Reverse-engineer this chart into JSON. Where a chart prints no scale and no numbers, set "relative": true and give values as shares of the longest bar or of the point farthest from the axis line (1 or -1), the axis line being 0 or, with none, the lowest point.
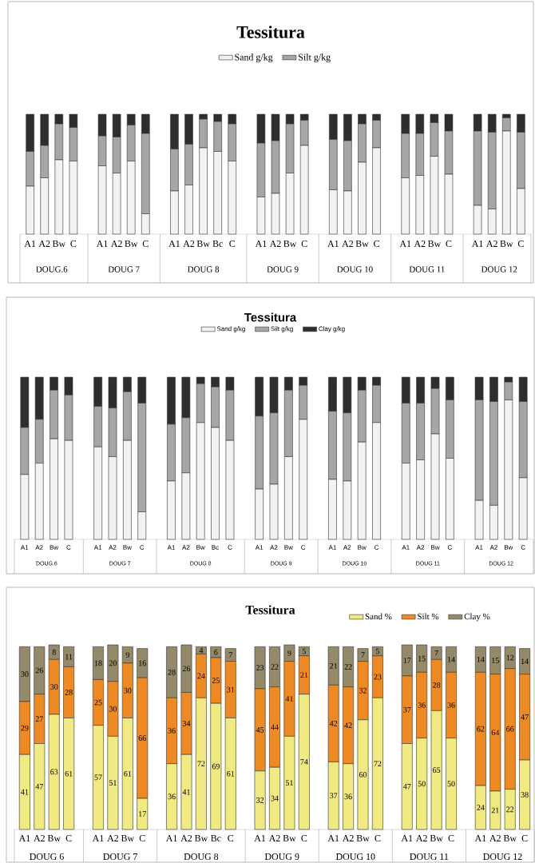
{
  "chart_data": [
    {
      "type": "bar",
      "title": "Tessitura",
      "stacked": true,
      "relative": true,
      "legend": "top",
      "categories": [
        "A1",
        "A2",
        "Bw",
        "C",
        null,
        "A1",
        "A2",
        "Bw",
        "C",
        null,
        "A1",
        "A2",
        "Bw",
        "Bc",
        "C",
        null,
        "A1",
        "A2",
        "Bw",
        "C",
        null,
        "A1",
        "A2",
        "Bw",
        "C",
        null,
        "A1",
        "A2",
        "Bw",
        "C",
        null,
        "A1",
        "A2",
        "Bw",
        "C"
      ],
      "annotations": [
        "DOUG.6",
        "DOUG 7",
        "DOUG 8",
        "DOUG 9",
        "DOUG 10",
        "DOUG 11",
        "DOUG 12"
      ],
      "series": [
        {
          "name": "Sand g/kg",
          "color": "#f2f2f2",
          "values": [
            0.4,
            0.47,
            0.62,
            0.61,
            null,
            0.57,
            0.51,
            0.61,
            0.17,
            null,
            0.36,
            0.41,
            0.72,
            0.69,
            0.61,
            null,
            0.31,
            0.34,
            0.51,
            0.74,
            null,
            0.37,
            0.36,
            0.6,
            0.72,
            null,
            0.47,
            0.49,
            0.65,
            0.5,
            null,
            0.24,
            0.21,
            0.86,
            0.38
          ]
        },
        {
          "name": "Silt g/kg",
          "color": "#a6a6a6",
          "values": [
            0.29,
            0.27,
            0.3,
            0.28,
            null,
            0.25,
            0.3,
            0.3,
            0.67,
            null,
            0.35,
            0.34,
            0.24,
            0.25,
            0.31,
            null,
            0.45,
            0.44,
            0.41,
            0.21,
            null,
            0.42,
            0.42,
            0.32,
            0.23,
            null,
            0.37,
            0.35,
            0.28,
            0.36,
            null,
            0.62,
            0.64,
            0.11,
            0.47
          ]
        },
        {
          "color": "#2e2e2e",
          "values": [
            0.31,
            0.26,
            0.08,
            0.11,
            null,
            0.18,
            0.19,
            0.09,
            0.16,
            null,
            0.29,
            0.25,
            0.04,
            0.06,
            0.08,
            null,
            0.24,
            0.22,
            0.08,
            0.05,
            null,
            0.21,
            0.22,
            0.08,
            0.05,
            null,
            0.16,
            0.16,
            0.07,
            0.14,
            null,
            0.14,
            0.15,
            0.03,
            0.15
          ]
        }
      ]
    },
    {
      "type": "bar",
      "title": "Tessitura",
      "stacked": true,
      "relative": true,
      "legend": "top",
      "categories": [
        "A1",
        "A2",
        "Bw",
        "C",
        null,
        "A1",
        "A2",
        "Bw",
        "C",
        null,
        "A1",
        "A2",
        "Bw",
        "Bc",
        "C",
        null,
        "A1",
        "A2",
        "Bw",
        "C",
        null,
        "A1",
        "A2",
        "Bw",
        "C",
        null,
        "A1",
        "A2",
        "Bw",
        "C",
        null,
        "A1",
        "A2",
        "Bw",
        "C"
      ],
      "annotations": [
        "DOUG.6",
        "DOUG 7",
        "DOUG 8",
        "DOUG 9",
        "DOUG 10",
        "DOUG 11",
        "DOUG 12"
      ],
      "series": [
        {
          "name": "Sand g/kg",
          "color": "#f2f2f2",
          "values": [
            0.4,
            0.47,
            0.62,
            0.61,
            null,
            0.57,
            0.51,
            0.61,
            0.17,
            null,
            0.36,
            0.41,
            0.72,
            0.69,
            0.61,
            null,
            0.31,
            0.34,
            0.51,
            0.74,
            null,
            0.37,
            0.36,
            0.6,
            0.72,
            null,
            0.47,
            0.49,
            0.65,
            0.5,
            null,
            0.24,
            0.21,
            0.86,
            0.38
          ]
        },
        {
          "name": "Silt g/kg",
          "color": "#a6a6a6",
          "values": [
            0.29,
            0.27,
            0.3,
            0.28,
            null,
            0.25,
            0.3,
            0.3,
            0.67,
            null,
            0.35,
            0.34,
            0.24,
            0.25,
            0.31,
            null,
            0.45,
            0.44,
            0.41,
            0.21,
            null,
            0.42,
            0.42,
            0.32,
            0.23,
            null,
            0.37,
            0.35,
            0.28,
            0.36,
            null,
            0.62,
            0.64,
            0.11,
            0.47
          ]
        },
        {
          "name": "Clay g/kg",
          "color": "#2e2e2e",
          "values": [
            0.31,
            0.26,
            0.08,
            0.11,
            null,
            0.18,
            0.19,
            0.09,
            0.16,
            null,
            0.29,
            0.25,
            0.04,
            0.06,
            0.08,
            null,
            0.24,
            0.22,
            0.08,
            0.05,
            null,
            0.21,
            0.22,
            0.08,
            0.05,
            null,
            0.16,
            0.16,
            0.07,
            0.14,
            null,
            0.14,
            0.15,
            0.03,
            0.15
          ]
        }
      ]
    },
    {
      "type": "bar",
      "title": "Tessitura",
      "stacked": true,
      "legend": "top right",
      "data_labels": true,
      "categories": [
        "A1",
        "A2",
        "Bw",
        "C",
        null,
        "A1",
        "A2",
        "Bw",
        "C",
        null,
        "A1",
        "A2",
        "Bw",
        "Bc",
        "C",
        null,
        "A1",
        "A2",
        "Bw",
        "C",
        null,
        "A1",
        "A2",
        "Bw",
        "C",
        null,
        "A1",
        "A2",
        "Bw",
        "C",
        null,
        "A1",
        "A2",
        "Bw",
        "C"
      ],
      "annotations": [
        "DOUG 6",
        "DOUG 7",
        "DOUG 8",
        "DOUG 9",
        "DOUG 10",
        "DOUG 11",
        "DOUG 12"
      ],
      "series": [
        {
          "name": "Sand %",
          "color": "#f0ea80",
          "values": [
            41,
            47,
            63,
            61,
            null,
            57,
            51,
            61,
            17,
            null,
            36,
            41,
            72,
            69,
            61,
            null,
            32,
            34,
            51,
            74,
            null,
            37,
            36,
            60,
            72,
            null,
            47,
            50,
            65,
            50,
            null,
            24,
            21,
            22,
            38
          ]
        },
        {
          "name": "Silt %",
          "color": "#ef8a22",
          "values": [
            29,
            27,
            30,
            28,
            null,
            25,
            30,
            30,
            66,
            null,
            36,
            34,
            24,
            25,
            31,
            null,
            45,
            44,
            41,
            21,
            null,
            42,
            42,
            32,
            23,
            null,
            37,
            36,
            28,
            36,
            null,
            62,
            64,
            66,
            47
          ]
        },
        {
          "name": "Clay %",
          "color": "#948a6a",
          "values": [
            30,
            26,
            8,
            11,
            null,
            18,
            20,
            9,
            16,
            null,
            28,
            26,
            4,
            6,
            7,
            null,
            23,
            22,
            9,
            5,
            null,
            21,
            22,
            7,
            5,
            null,
            17,
            15,
            7,
            14,
            null,
            14,
            15,
            12,
            14
          ]
        }
      ]
    }
  ]
}
